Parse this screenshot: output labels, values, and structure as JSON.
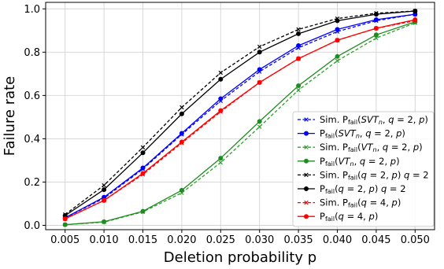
{
  "chart_data": {
    "type": "line",
    "xlabel": "Deletion probability p",
    "ylabel": "Failure rate",
    "xlim": [
      0.0025,
      0.0525
    ],
    "ylim": [
      -0.02,
      1.03
    ],
    "x": [
      0.005,
      0.01,
      0.015,
      0.02,
      0.025,
      0.03,
      0.035,
      0.04,
      0.045,
      0.05
    ],
    "x_tick_labels": [
      "0.005",
      "0.010",
      "0.015",
      "0.020",
      "0.025",
      "0.030",
      "0.035",
      "0.040",
      "0.045",
      "0.050"
    ],
    "y_ticks": [
      0.0,
      0.2,
      0.4,
      0.6,
      0.8,
      1.0
    ],
    "y_tick_labels": [
      "0.0",
      "0.2",
      "0.4",
      "0.6",
      "0.8",
      "1.0"
    ],
    "grid": true,
    "legend_position": "lower-right",
    "series": [
      {
        "name": "Sim. P_fail(SVT_n, q = 2, p)",
        "color": "#0000ff",
        "dash": true,
        "marker": "x",
        "legend": [
          {
            "t": "Sim. P"
          },
          {
            "t": "fail",
            "sub": true
          },
          {
            "t": "("
          },
          {
            "t": "SVT",
            "it": true
          },
          {
            "t": "n",
            "sub": true,
            "it": true
          },
          {
            "t": ", "
          },
          {
            "t": "q",
            "it": true
          },
          {
            "t": " = 2, "
          },
          {
            "t": "p",
            "it": true
          },
          {
            "t": ")"
          }
        ],
        "values": [
          0.035,
          0.125,
          0.26,
          0.42,
          0.575,
          0.71,
          0.82,
          0.895,
          0.945,
          0.975
        ]
      },
      {
        "name": "P_fail(SVT_n, q = 2, p)",
        "color": "#0000ff",
        "dash": false,
        "marker": "o",
        "legend": [
          {
            "t": "P"
          },
          {
            "t": "fail",
            "sub": true
          },
          {
            "t": "("
          },
          {
            "t": "SVT",
            "it": true
          },
          {
            "t": "n",
            "sub": true,
            "it": true
          },
          {
            "t": ", "
          },
          {
            "t": "q",
            "it": true
          },
          {
            "t": " = 2, "
          },
          {
            "t": "p",
            "it": true
          },
          {
            "t": ")"
          }
        ],
        "values": [
          0.035,
          0.13,
          0.265,
          0.425,
          0.585,
          0.72,
          0.83,
          0.905,
          0.95,
          0.975
        ]
      },
      {
        "name": "Sim. P_fail(VT_n, q = 2, p)",
        "color": "#2ca02c",
        "dash": true,
        "marker": "x",
        "legend": [
          {
            "t": "Sim. P"
          },
          {
            "t": "fail",
            "sub": true
          },
          {
            "t": "("
          },
          {
            "t": "VT",
            "it": true
          },
          {
            "t": "n",
            "sub": true,
            "it": true
          },
          {
            "t": ", "
          },
          {
            "t": "q",
            "it": true
          },
          {
            "t": " = 2, "
          },
          {
            "t": "p",
            "it": true
          },
          {
            "t": ")"
          }
        ],
        "values": [
          0.003,
          0.015,
          0.062,
          0.15,
          0.29,
          0.455,
          0.625,
          0.76,
          0.865,
          0.935
        ]
      },
      {
        "name": "P_fail(VT_n, q = 2, p)",
        "color": "#1f8c1f",
        "dash": false,
        "marker": "o",
        "legend": [
          {
            "t": "P"
          },
          {
            "t": "fail",
            "sub": true
          },
          {
            "t": "("
          },
          {
            "t": "VT",
            "it": true
          },
          {
            "t": "n",
            "sub": true,
            "it": true
          },
          {
            "t": ", "
          },
          {
            "t": "q",
            "it": true
          },
          {
            "t": " = 2, "
          },
          {
            "t": "p",
            "it": true
          },
          {
            "t": ")"
          }
        ],
        "values": [
          0.003,
          0.017,
          0.065,
          0.162,
          0.31,
          0.48,
          0.645,
          0.78,
          0.88,
          0.94
        ]
      },
      {
        "name": "Sim. P_fail(q = 2, p) q = 2",
        "color": "#000000",
        "dash": true,
        "marker": "x",
        "legend": [
          {
            "t": "Sim. P"
          },
          {
            "t": "fail",
            "sub": true
          },
          {
            "t": "("
          },
          {
            "t": "q",
            "it": true
          },
          {
            "t": " = 2, "
          },
          {
            "t": "p",
            "it": true
          },
          {
            "t": ") "
          },
          {
            "t": "q",
            "it": true
          },
          {
            "t": " = 2"
          }
        ],
        "values": [
          0.05,
          0.185,
          0.36,
          0.545,
          0.705,
          0.825,
          0.905,
          0.955,
          0.98,
          0.99
        ]
      },
      {
        "name": "P_fail(q = 2, p) q = 2",
        "color": "#000000",
        "dash": false,
        "marker": "o",
        "legend": [
          {
            "t": "P"
          },
          {
            "t": "fail",
            "sub": true
          },
          {
            "t": "("
          },
          {
            "t": "q",
            "it": true
          },
          {
            "t": " = 2, "
          },
          {
            "t": "p",
            "it": true
          },
          {
            "t": ") "
          },
          {
            "t": "q",
            "it": true
          },
          {
            "t": " = 2"
          }
        ],
        "values": [
          0.045,
          0.165,
          0.335,
          0.515,
          0.675,
          0.8,
          0.885,
          0.945,
          0.975,
          0.99
        ]
      },
      {
        "name": "Sim. P_fail(q = 4, p)",
        "color": "#ff0000",
        "dash": true,
        "marker": "x",
        "legend": [
          {
            "t": "Sim. P"
          },
          {
            "t": "fail",
            "sub": true
          },
          {
            "t": "("
          },
          {
            "t": "q",
            "it": true
          },
          {
            "t": " = 4, "
          },
          {
            "t": "p",
            "it": true
          },
          {
            "t": ")"
          }
        ],
        "values": [
          0.03,
          0.115,
          0.235,
          0.38,
          0.525,
          0.66,
          0.77,
          0.855,
          0.91,
          0.945
        ]
      },
      {
        "name": "P_fail(q = 4, p)",
        "color": "#ff0000",
        "dash": false,
        "marker": "o",
        "legend": [
          {
            "t": "P"
          },
          {
            "t": "fail",
            "sub": true
          },
          {
            "t": "("
          },
          {
            "t": "q",
            "it": true
          },
          {
            "t": " = 4, "
          },
          {
            "t": "p",
            "it": true
          },
          {
            "t": ")"
          }
        ],
        "values": [
          0.03,
          0.115,
          0.24,
          0.385,
          0.53,
          0.66,
          0.77,
          0.855,
          0.91,
          0.95
        ]
      }
    ]
  }
}
